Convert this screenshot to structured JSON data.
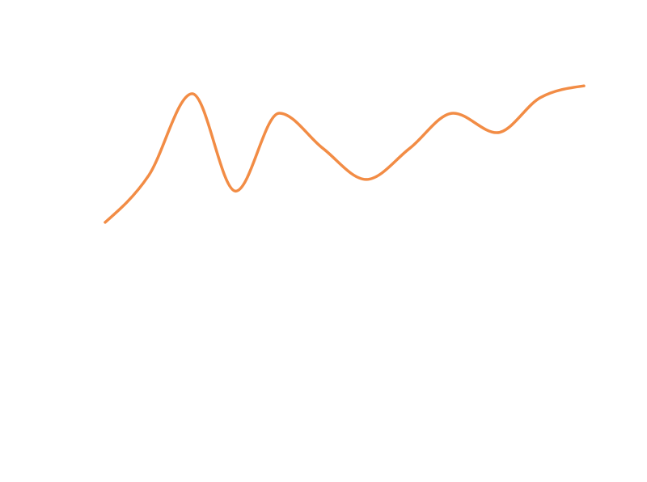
{
  "chart_data": {
    "type": "line",
    "title": "",
    "xlabel": "",
    "ylabel": "",
    "grid": false,
    "legend": "none",
    "axes_visible": false,
    "curve": "smooth",
    "xlim": [
      0,
      11
    ],
    "ylim": [
      0,
      100
    ],
    "x": [
      0,
      1,
      2,
      3,
      4,
      5,
      6,
      7,
      8,
      9,
      10,
      11
    ],
    "series": [
      {
        "color": "#f28c45",
        "values": [
          55,
          67,
          88,
          63,
          83,
          74,
          66,
          74,
          83,
          78,
          87,
          90
        ]
      }
    ]
  }
}
